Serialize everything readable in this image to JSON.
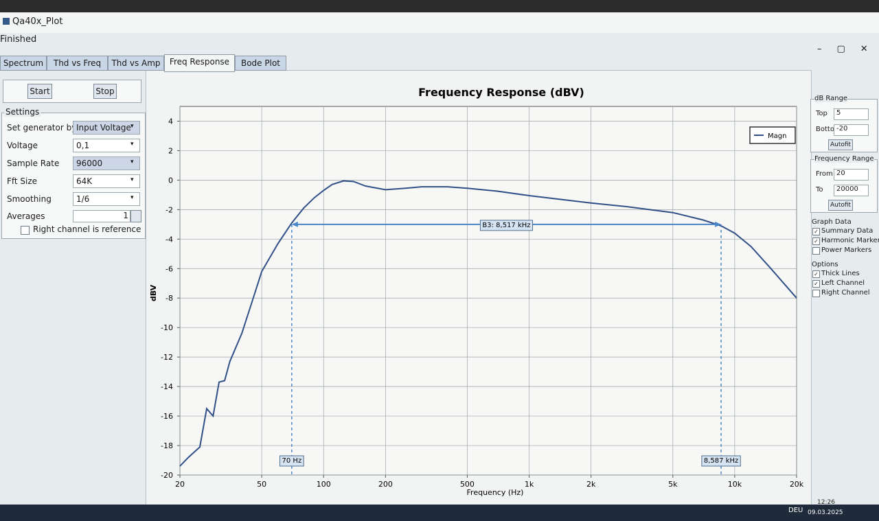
{
  "window": {
    "title": "Qa40x_Plot",
    "status": "Finished",
    "tabs": [
      "Spectrum",
      "Thd vs Freq",
      "Thd vs Amp",
      "Freq Response",
      "Bode Plot"
    ],
    "active_tab": 3,
    "buttons": [
      "Start",
      "Stop"
    ],
    "settings": {
      "title": "Settings",
      "rows": [
        {
          "label": "Set generator by",
          "value": "Input Voltage"
        },
        {
          "label": "Voltage",
          "value": "0,1"
        },
        {
          "label": "Sample Rate",
          "value": "96000"
        },
        {
          "label": "Fft Size",
          "value": "64K"
        },
        {
          "label": "Smoothing",
          "value": "1/6"
        }
      ],
      "averages": {
        "label": "Averages",
        "value": 1
      },
      "reference": {
        "label": "Right channel is reference",
        "checked": false
      }
    },
    "panels": [
      {
        "title": "dB Range",
        "fields": [
          {
            "label": "Top",
            "value": 5
          },
          {
            "label": "Bottom",
            "value": -20
          }
        ],
        "button": "Autofit"
      },
      {
        "title": "Frequency Range",
        "fields": [
          {
            "label": "From",
            "value": 20
          },
          {
            "label": "To",
            "value": 20000
          }
        ],
        "button": "Autofit"
      }
    ],
    "checkgroups": [
      {
        "title": "Graph Data",
        "items": [
          {
            "label": "Summary Data",
            "checked": true
          },
          {
            "label": "Harmonic Markers",
            "checked": true
          },
          {
            "label": "Power Markers",
            "checked": false
          }
        ]
      },
      {
        "title": "Options",
        "items": [
          {
            "label": "Thick Lines",
            "checked": true
          },
          {
            "label": "Left Channel",
            "checked": true
          },
          {
            "label": "Right Channel",
            "checked": false
          }
        ]
      }
    ],
    "taskbar": {
      "language": "DEU",
      "time": "12:26",
      "date": "09.03.2025"
    }
  },
  "chart_data": {
    "type": "line",
    "title": "Frequency Response (dBV)",
    "x_label": "Frequency (Hz)",
    "y_label": "dBV",
    "xscale": "log",
    "grid": true,
    "legend": "top-right",
    "x": [
      20,
      22,
      25,
      27,
      29,
      31,
      33,
      35,
      40,
      45,
      50,
      60,
      70,
      80,
      90,
      100,
      110,
      125,
      140,
      160,
      200,
      250,
      300,
      400,
      500,
      700,
      1000,
      2000,
      3000,
      5000,
      7000,
      8587,
      10000,
      12000,
      15000,
      20000
    ],
    "series": [
      {
        "name": "Magn",
        "color": "#2f4f86",
        "values": [
          -19.4,
          -18.8,
          -18.1,
          -15.5,
          -16,
          -13.7,
          -13.6,
          -12.3,
          -10.4,
          -8.2,
          -6.2,
          -4.3,
          -2.9,
          -1.9,
          -1.2,
          -0.7,
          -0.3,
          -0.05,
          -0.1,
          -0.4,
          -0.65,
          -0.55,
          -0.45,
          -0.45,
          -0.55,
          -0.75,
          -1.05,
          -1.55,
          -1.8,
          -2.2,
          -2.7,
          -3.1,
          -3.6,
          -4.5,
          -6.0,
          -8.0
        ]
      }
    ],
    "xlim": [
      20,
      20000
    ],
    "xticks": [
      20,
      50,
      100,
      200,
      500,
      {
        "value": 1000,
        "label": "1k"
      },
      {
        "value": 2000,
        "label": "2k"
      },
      {
        "value": 5000,
        "label": "5k"
      },
      {
        "value": 10000,
        "label": "10k"
      },
      {
        "value": 20000,
        "label": "20k"
      }
    ],
    "ylim": [
      -20,
      5
    ],
    "yticks": [
      -20,
      -18,
      -16,
      -14,
      -12,
      -10,
      -8,
      -6,
      -4,
      -2,
      0,
      2,
      4
    ],
    "markers": [
      {
        "label": "70 Hz",
        "x": 70
      },
      {
        "label": "8,587 kHz",
        "x": 8587
      }
    ],
    "bandwidth": {
      "label": "B3: 8,517 kHz",
      "y": -3
    }
  }
}
